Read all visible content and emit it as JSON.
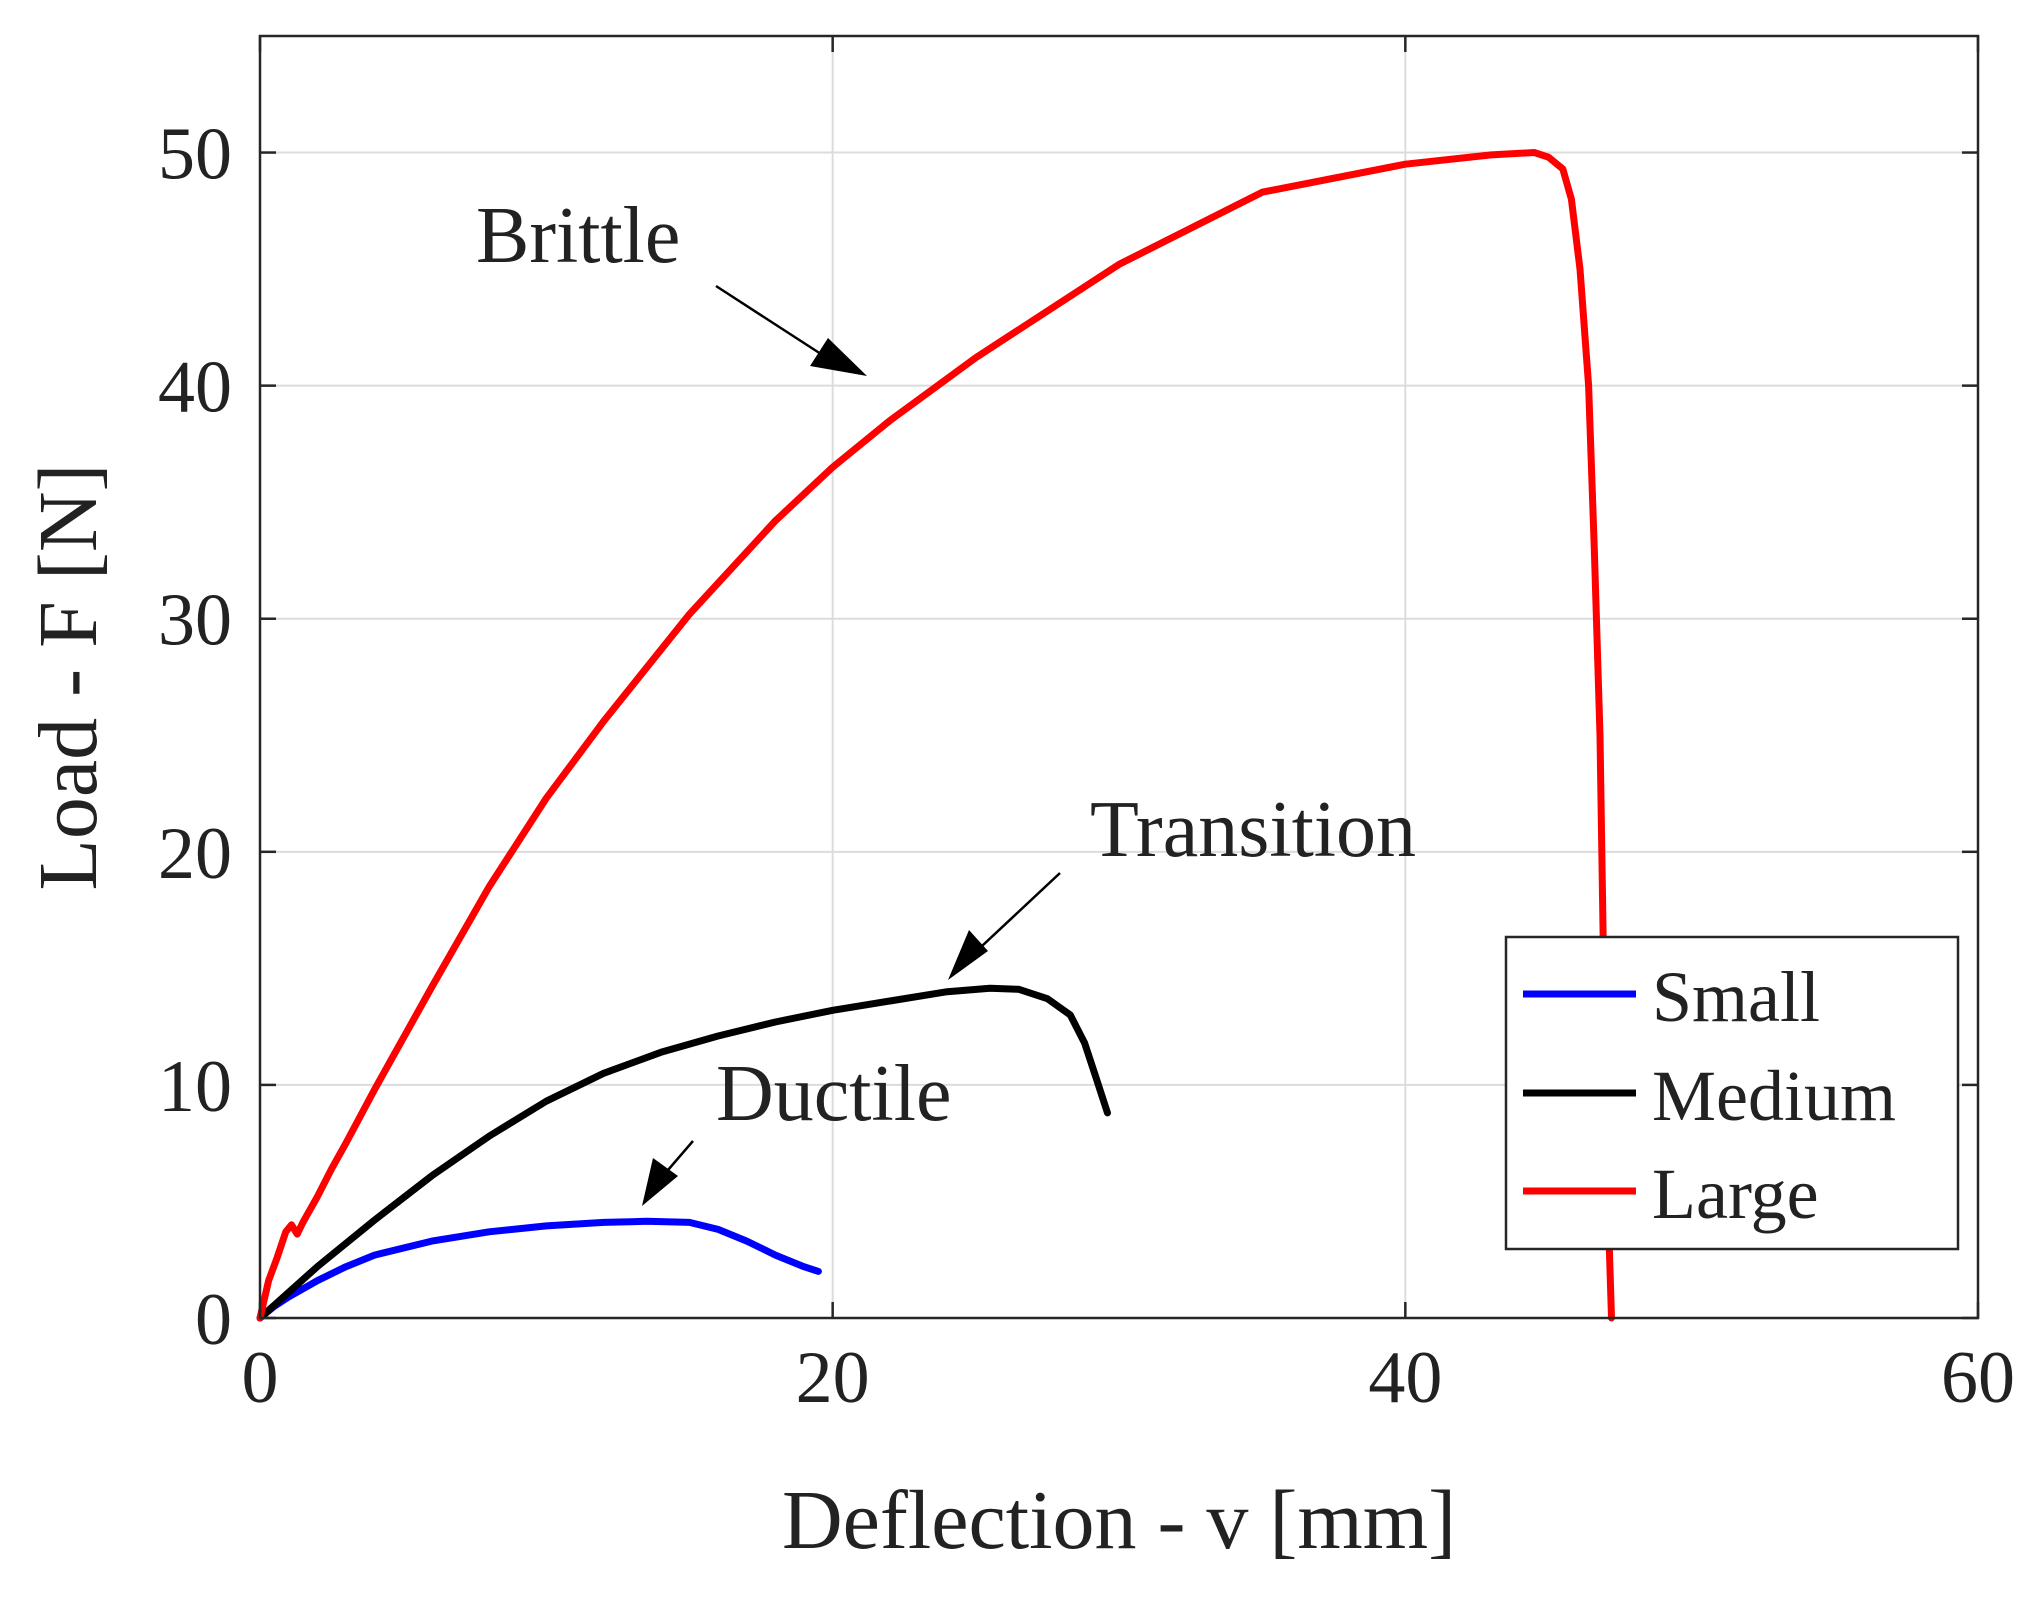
{
  "chart_data": {
    "type": "line",
    "xlabel": "Deflection - v [mm]",
    "ylabel": "Load - F [N]",
    "xlim": [
      0,
      60
    ],
    "ylim": [
      0,
      55
    ],
    "xticks": [
      0,
      20,
      40,
      60
    ],
    "yticks": [
      0,
      10,
      20,
      30,
      40,
      50
    ],
    "grid": true,
    "legend_position": "bottom-right",
    "series": [
      {
        "name": "Small",
        "color": "#0000ff",
        "x": [
          0,
          0.5,
          1,
          2,
          3,
          4,
          6,
          8,
          10,
          12,
          13.5,
          15,
          16,
          17,
          18,
          19,
          19.5
        ],
        "y": [
          0,
          0.5,
          0.9,
          1.6,
          2.2,
          2.7,
          3.3,
          3.7,
          3.95,
          4.1,
          4.15,
          4.1,
          3.8,
          3.3,
          2.7,
          2.2,
          2.0
        ]
      },
      {
        "name": "Medium",
        "color": "#000000",
        "x": [
          0,
          1,
          2,
          4,
          6,
          8,
          10,
          12,
          14,
          16,
          18,
          20,
          22,
          24,
          25.5,
          26.5,
          27.5,
          28.3,
          28.8,
          29.2,
          29.6
        ],
        "y": [
          0,
          1.1,
          2.2,
          4.2,
          6.1,
          7.8,
          9.3,
          10.5,
          11.4,
          12.1,
          12.7,
          13.2,
          13.6,
          14.0,
          14.15,
          14.1,
          13.7,
          13.0,
          11.8,
          10.3,
          8.8
        ]
      },
      {
        "name": "Large",
        "color": "#ff0000",
        "x": [
          0,
          0.3,
          0.6,
          0.9,
          1.1,
          1.3,
          1.5,
          2,
          2.5,
          3,
          4,
          6,
          8,
          10,
          12,
          15,
          18,
          20,
          22,
          25,
          30,
          35,
          40,
          43,
          44.5,
          45,
          45.5,
          45.8,
          46.1,
          46.4,
          46.6,
          46.8,
          46.9,
          47.0,
          47.1,
          47.2
        ],
        "y": [
          0,
          1.6,
          2.6,
          3.7,
          4.0,
          3.6,
          4.1,
          5.2,
          6.4,
          7.5,
          9.8,
          14.2,
          18.5,
          22.3,
          25.6,
          30.2,
          34.2,
          36.5,
          38.5,
          41.2,
          45.2,
          48.3,
          49.5,
          49.9,
          50.0,
          49.8,
          49.3,
          48.0,
          45.0,
          40.0,
          33.0,
          25.0,
          17.0,
          10.0,
          4.0,
          0.0
        ]
      }
    ],
    "annotations": [
      {
        "text": "Brittle",
        "x": 23.5,
        "y": 40.5,
        "series": "Large"
      },
      {
        "text": "Transition",
        "x": 24,
        "y": 14.2,
        "series": "Medium"
      },
      {
        "text": "Ductile",
        "x": 13.5,
        "y": 4.3,
        "series": "Small"
      }
    ]
  }
}
